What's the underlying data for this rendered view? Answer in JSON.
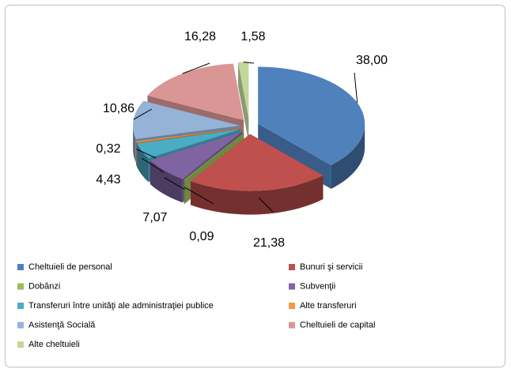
{
  "chart_data": {
    "type": "pie3d",
    "categories": [
      "Cheltuieli de personal",
      "Bunuri şi servicii",
      "Dobânzi",
      "Subvenţii",
      "Transferuri între unităţi ale administraţiei publice",
      "Alte transferuri",
      "Asistenţă Socială",
      "Cheltuieli de capital",
      "Alte cheltuieli"
    ],
    "values": [
      38.0,
      21.38,
      0.09,
      7.07,
      4.43,
      0.32,
      10.86,
      16.28,
      1.58
    ],
    "value_labels": [
      "38,00",
      "21,38",
      "0,09",
      "7,07",
      "4,43",
      "0,32",
      "10,86",
      "16,28",
      "1,58"
    ],
    "colors": [
      "#4f81bd",
      "#c0504d",
      "#9bbb59",
      "#8064a2",
      "#4bacc6",
      "#f79646",
      "#95b3d7",
      "#d99694",
      "#c3d69b"
    ],
    "legend": "bottom"
  }
}
